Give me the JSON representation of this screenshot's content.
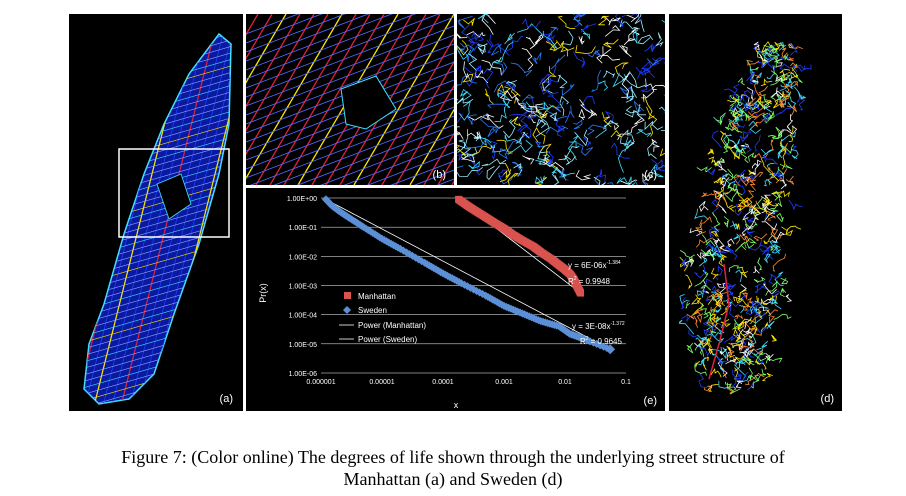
{
  "panels": {
    "a": {
      "label": "(a)"
    },
    "b": {
      "label": "(b)"
    },
    "c": {
      "label": "(c)"
    },
    "d": {
      "label": "(d)"
    },
    "e": {
      "label": "(e)"
    }
  },
  "colors": {
    "background": "#000000",
    "street_blue": "#1e3cff",
    "street_yellow": "#ffe600",
    "street_red": "#e0203a",
    "street_cyan": "#40e0ff",
    "manhattan_series": "#d9534f",
    "sweden_series": "#5b8fd6"
  },
  "caption": {
    "line1": "Figure 7: (Color online) The degrees of life shown through the underlying street structure of",
    "line2": "Manhattan (a) and Sweden (d)"
  },
  "chart_data": {
    "type": "scatter",
    "xlabel": "x",
    "ylabel": "Pr(x)",
    "x_scale": "log",
    "y_scale": "log",
    "xlim": [
      1e-06,
      0.1
    ],
    "ylim": [
      1e-06,
      1
    ],
    "x_ticks": [
      "0.000001",
      "0.00001",
      "0.0001",
      "0.001",
      "0.01",
      "0.1"
    ],
    "y_ticks": [
      "1.00E+00",
      "1.00E-01",
      "1.00E-02",
      "1.00E-03",
      "1.00E-04",
      "1.00E-05",
      "1.00E-06"
    ],
    "grid": "horizontal",
    "legend": {
      "position": "left",
      "entries": [
        "Manhattan",
        "Sweden",
        "Power (Manhattan)",
        "Power (Sweden)"
      ]
    },
    "series": [
      {
        "name": "Manhattan",
        "marker": "square",
        "color": "#d9534f",
        "x": [
          0.00018,
          0.00025,
          0.00035,
          0.0005,
          0.0007,
          0.001,
          0.0014,
          0.002,
          0.003,
          0.004,
          0.006,
          0.008,
          0.01,
          0.012,
          0.014,
          0.016,
          0.018
        ],
        "y": [
          0.9,
          0.55,
          0.35,
          0.22,
          0.14,
          0.09,
          0.055,
          0.035,
          0.022,
          0.014,
          0.008,
          0.005,
          0.0035,
          0.0025,
          0.0016,
          0.0009,
          0.00055
        ]
      },
      {
        "name": "Sweden",
        "marker": "diamond",
        "color": "#5b8fd6",
        "x": [
          1.2e-06,
          1.5e-06,
          2e-06,
          3e-06,
          5e-06,
          1e-05,
          2e-05,
          5e-05,
          0.0001,
          0.0002,
          0.0005,
          0.001,
          0.002,
          0.004,
          0.008,
          0.012,
          0.02,
          0.055
        ],
        "y": [
          0.9,
          0.55,
          0.35,
          0.2,
          0.1,
          0.04,
          0.018,
          0.006,
          0.0026,
          0.0012,
          0.00045,
          0.0002,
          0.00011,
          6e-05,
          4e-05,
          2.2e-05,
          1.5e-05,
          6.5e-06
        ]
      }
    ],
    "trendlines": [
      {
        "name": "Power (Manhattan)",
        "equation": "y = 6E-06x",
        "exponent": "-1.384",
        "r2": "= 0.9948"
      },
      {
        "name": "Power (Sweden)",
        "equation": "y = 3E-08x",
        "exponent": "-1.372",
        "r2": "= 0.9645"
      }
    ]
  }
}
